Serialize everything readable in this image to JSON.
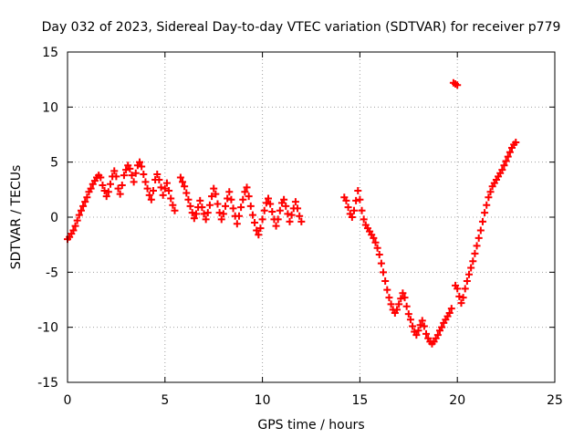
{
  "chart_data": {
    "type": "scatter",
    "title": "Day 032 of 2023, Sidereal Day-to-day VTEC variation (SDTVAR) for receiver p779",
    "xlabel": "GPS time / hours",
    "ylabel": "SDTVAR / TECUs",
    "xlim": [
      0,
      25
    ],
    "ylim": [
      -15,
      15
    ],
    "xticks": [
      0,
      5,
      10,
      15,
      20,
      25
    ],
    "yticks": [
      -15,
      -10,
      -5,
      0,
      5,
      10,
      15
    ],
    "xtick_labels": [
      "0",
      "5",
      "10",
      "15",
      "20",
      "25"
    ],
    "ytick_labels": [
      "-15",
      "-10",
      "-5",
      "0",
      "5",
      "10",
      "15"
    ],
    "grid": true,
    "marker": "plus",
    "color": "#ff0000",
    "series": [
      {
        "name": "SDTVAR",
        "points": [
          [
            0.0,
            -2.0
          ],
          [
            0.1,
            -1.8
          ],
          [
            0.2,
            -1.5
          ],
          [
            0.3,
            -1.2
          ],
          [
            0.4,
            -0.8
          ],
          [
            0.5,
            -0.3
          ],
          [
            0.6,
            0.2
          ],
          [
            0.7,
            0.6
          ],
          [
            0.8,
            1.0
          ],
          [
            0.9,
            1.4
          ],
          [
            1.0,
            1.8
          ],
          [
            1.1,
            2.3
          ],
          [
            1.2,
            2.6
          ],
          [
            1.3,
            3.0
          ],
          [
            1.4,
            3.3
          ],
          [
            1.5,
            3.6
          ],
          [
            1.6,
            3.8
          ],
          [
            1.7,
            3.6
          ],
          [
            1.8,
            2.9
          ],
          [
            1.9,
            2.4
          ],
          [
            2.0,
            1.9
          ],
          [
            2.1,
            2.3
          ],
          [
            2.2,
            3.0
          ],
          [
            2.3,
            3.7
          ],
          [
            2.4,
            4.2
          ],
          [
            2.5,
            3.7
          ],
          [
            2.6,
            2.6
          ],
          [
            2.7,
            2.1
          ],
          [
            2.8,
            2.9
          ],
          [
            2.9,
            3.8
          ],
          [
            3.0,
            4.3
          ],
          [
            3.1,
            4.7
          ],
          [
            3.2,
            4.4
          ],
          [
            3.3,
            3.8
          ],
          [
            3.4,
            3.2
          ],
          [
            3.5,
            4.0
          ],
          [
            3.6,
            4.7
          ],
          [
            3.7,
            5.0
          ],
          [
            3.8,
            4.6
          ],
          [
            3.9,
            3.9
          ],
          [
            4.0,
            3.2
          ],
          [
            4.1,
            2.6
          ],
          [
            4.2,
            2.0
          ],
          [
            4.3,
            1.6
          ],
          [
            4.4,
            2.4
          ],
          [
            4.5,
            3.4
          ],
          [
            4.6,
            3.9
          ],
          [
            4.7,
            3.4
          ],
          [
            4.8,
            2.7
          ],
          [
            4.9,
            2.0
          ],
          [
            5.0,
            2.6
          ],
          [
            5.1,
            3.1
          ],
          [
            5.2,
            2.4
          ],
          [
            5.3,
            1.7
          ],
          [
            5.4,
            1.1
          ],
          [
            5.5,
            0.6
          ],
          [
            5.8,
            3.6
          ],
          [
            5.9,
            3.2
          ],
          [
            6.0,
            2.8
          ],
          [
            6.1,
            2.2
          ],
          [
            6.2,
            1.6
          ],
          [
            6.3,
            1.0
          ],
          [
            6.4,
            0.4
          ],
          [
            6.5,
            -0.1
          ],
          [
            6.6,
            0.3
          ],
          [
            6.7,
            0.9
          ],
          [
            6.8,
            1.5
          ],
          [
            6.9,
            0.9
          ],
          [
            7.0,
            0.3
          ],
          [
            7.1,
            -0.2
          ],
          [
            7.2,
            0.4
          ],
          [
            7.3,
            1.1
          ],
          [
            7.4,
            1.9
          ],
          [
            7.5,
            2.6
          ],
          [
            7.6,
            2.1
          ],
          [
            7.7,
            1.2
          ],
          [
            7.8,
            0.4
          ],
          [
            7.9,
            -0.2
          ],
          [
            8.0,
            0.3
          ],
          [
            8.1,
            1.0
          ],
          [
            8.2,
            1.7
          ],
          [
            8.3,
            2.3
          ],
          [
            8.4,
            1.6
          ],
          [
            8.5,
            0.8
          ],
          [
            8.6,
            0.1
          ],
          [
            8.7,
            -0.6
          ],
          [
            8.8,
            0.1
          ],
          [
            8.9,
            0.9
          ],
          [
            9.0,
            1.6
          ],
          [
            9.1,
            2.3
          ],
          [
            9.2,
            2.7
          ],
          [
            9.3,
            1.9
          ],
          [
            9.4,
            1.0
          ],
          [
            9.5,
            0.2
          ],
          [
            9.6,
            -0.5
          ],
          [
            9.7,
            -1.2
          ],
          [
            9.8,
            -1.6
          ],
          [
            9.9,
            -1.0
          ],
          [
            10.0,
            -0.2
          ],
          [
            10.1,
            0.6
          ],
          [
            10.2,
            1.3
          ],
          [
            10.3,
            1.7
          ],
          [
            10.4,
            1.2
          ],
          [
            10.5,
            0.5
          ],
          [
            10.6,
            -0.2
          ],
          [
            10.7,
            -0.8
          ],
          [
            10.8,
            -0.2
          ],
          [
            10.9,
            0.6
          ],
          [
            11.0,
            1.3
          ],
          [
            11.1,
            1.6
          ],
          [
            11.2,
            1.0
          ],
          [
            11.3,
            0.3
          ],
          [
            11.4,
            -0.4
          ],
          [
            11.5,
            0.2
          ],
          [
            11.6,
            0.8
          ],
          [
            11.7,
            1.4
          ],
          [
            11.8,
            0.8
          ],
          [
            11.9,
            0.1
          ],
          [
            12.0,
            -0.4
          ],
          [
            14.2,
            1.8
          ],
          [
            14.3,
            1.5
          ],
          [
            14.4,
            0.9
          ],
          [
            14.5,
            0.3
          ],
          [
            14.6,
            0.0
          ],
          [
            14.7,
            0.6
          ],
          [
            14.8,
            1.5
          ],
          [
            14.9,
            2.4
          ],
          [
            15.0,
            1.6
          ],
          [
            15.1,
            0.6
          ],
          [
            15.2,
            -0.2
          ],
          [
            15.3,
            -0.7
          ],
          [
            15.4,
            -1.0
          ],
          [
            15.5,
            -1.3
          ],
          [
            15.6,
            -1.6
          ],
          [
            15.7,
            -1.9
          ],
          [
            15.8,
            -2.3
          ],
          [
            15.9,
            -2.8
          ],
          [
            16.0,
            -3.4
          ],
          [
            16.1,
            -4.2
          ],
          [
            16.2,
            -5.0
          ],
          [
            16.3,
            -5.8
          ],
          [
            16.4,
            -6.6
          ],
          [
            16.5,
            -7.3
          ],
          [
            16.6,
            -7.9
          ],
          [
            16.7,
            -8.4
          ],
          [
            16.8,
            -8.7
          ],
          [
            16.9,
            -8.4
          ],
          [
            17.0,
            -7.9
          ],
          [
            17.1,
            -7.4
          ],
          [
            17.2,
            -6.9
          ],
          [
            17.3,
            -7.3
          ],
          [
            17.4,
            -8.1
          ],
          [
            17.5,
            -8.8
          ],
          [
            17.6,
            -9.3
          ],
          [
            17.7,
            -9.9
          ],
          [
            17.8,
            -10.4
          ],
          [
            17.9,
            -10.7
          ],
          [
            18.0,
            -10.3
          ],
          [
            18.1,
            -9.8
          ],
          [
            18.2,
            -9.4
          ],
          [
            18.3,
            -9.9
          ],
          [
            18.4,
            -10.6
          ],
          [
            18.5,
            -11.0
          ],
          [
            18.6,
            -11.3
          ],
          [
            18.7,
            -11.5
          ],
          [
            18.8,
            -11.3
          ],
          [
            18.9,
            -11.0
          ],
          [
            19.0,
            -10.7
          ],
          [
            19.1,
            -10.3
          ],
          [
            19.2,
            -10.0
          ],
          [
            19.3,
            -9.6
          ],
          [
            19.4,
            -9.3
          ],
          [
            19.5,
            -9.0
          ],
          [
            19.6,
            -8.7
          ],
          [
            19.7,
            -8.3
          ],
          [
            19.8,
            12.2
          ],
          [
            19.9,
            12.1
          ],
          [
            20.0,
            12.0
          ],
          [
            19.9,
            -6.2
          ],
          [
            20.0,
            -6.5
          ],
          [
            20.1,
            -7.2
          ],
          [
            20.2,
            -7.8
          ],
          [
            20.3,
            -7.3
          ],
          [
            20.4,
            -6.5
          ],
          [
            20.5,
            -5.8
          ],
          [
            20.6,
            -5.2
          ],
          [
            20.7,
            -4.6
          ],
          [
            20.8,
            -4.0
          ],
          [
            20.9,
            -3.3
          ],
          [
            21.0,
            -2.6
          ],
          [
            21.1,
            -1.9
          ],
          [
            21.2,
            -1.2
          ],
          [
            21.3,
            -0.4
          ],
          [
            21.4,
            0.4
          ],
          [
            21.5,
            1.1
          ],
          [
            21.6,
            1.8
          ],
          [
            21.7,
            2.3
          ],
          [
            21.8,
            2.8
          ],
          [
            21.9,
            3.1
          ],
          [
            22.0,
            3.4
          ],
          [
            22.1,
            3.7
          ],
          [
            22.2,
            4.0
          ],
          [
            22.3,
            4.3
          ],
          [
            22.4,
            4.7
          ],
          [
            22.5,
            5.1
          ],
          [
            22.6,
            5.5
          ],
          [
            22.7,
            5.9
          ],
          [
            22.8,
            6.3
          ],
          [
            22.9,
            6.6
          ],
          [
            23.0,
            6.8
          ]
        ]
      }
    ]
  }
}
